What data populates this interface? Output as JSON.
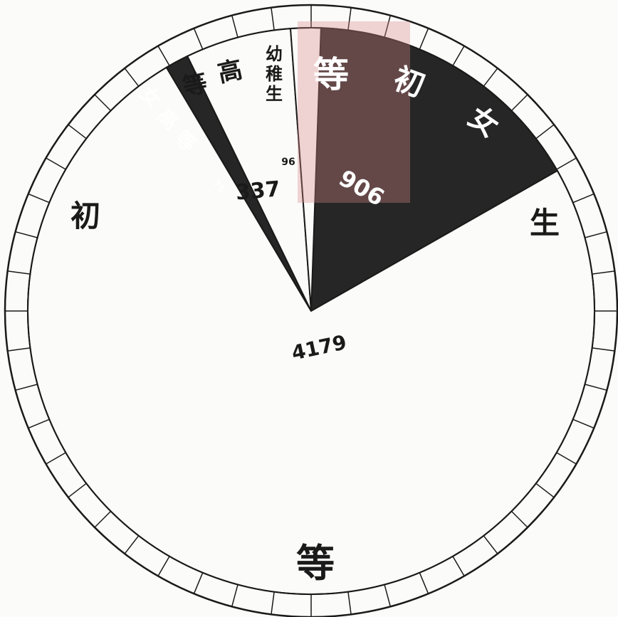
{
  "chart_data": {
    "type": "pie",
    "title": "",
    "slices": [
      {
        "label": "初等女生",
        "value": 906,
        "value_label": "906",
        "color": "#262626"
      },
      {
        "label": "初等生",
        "value": 4179,
        "value_label": "4179",
        "color": "#fbfbf9"
      },
      {
        "label": "女高等",
        "value": 75,
        "value_label": "75",
        "color": "#262626"
      },
      {
        "label": "高等",
        "value": 337,
        "value_label": "337",
        "color": "#fbfbf9"
      },
      {
        "label": "幼稚生",
        "value": 96,
        "value_label": "96",
        "color": "#fbfbf9"
      }
    ],
    "big_label_chars": [
      "初",
      "等",
      "生"
    ],
    "female_primary_chars": [
      "等",
      "初",
      "女"
    ],
    "female_higher_chars": [
      "女",
      "高",
      "等"
    ],
    "higher_chars": [
      "高",
      "等"
    ],
    "kindergarten_chars": [
      "幼",
      "稚",
      "生"
    ],
    "ink_color": "#1a1a1a",
    "stamp_color": "#d98a8a"
  }
}
